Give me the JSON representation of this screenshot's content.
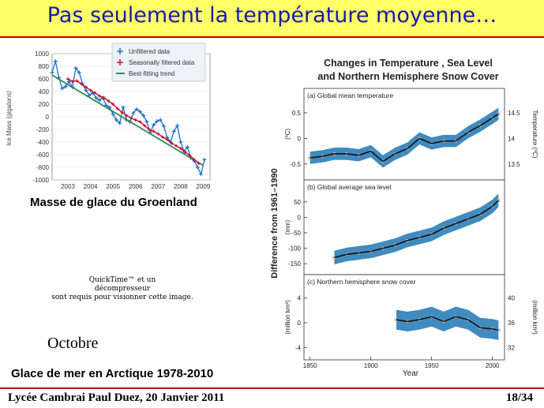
{
  "slide_title": "Pas seulement la température moyenne…",
  "footer": {
    "left": "Lycée Cambrai Paul Duez, 20 Janvier 2011",
    "right": "18/34"
  },
  "greenland_caption": "Masse de glace du Groenland",
  "quicktime_text": [
    "QuickTime™ et un",
    "décompresseur",
    "sont requis pour visionner cette image."
  ],
  "october_label": "Octobre",
  "arctic_caption": "Glace de mer en Arctique 1978-2010",
  "colors": {
    "title_bg": "#ffff66",
    "title_text": "#1a1aa6",
    "rule": "#c00000",
    "unfiltered": "#1f6fc5",
    "filtered": "#c8102e",
    "trend": "#2e8b57",
    "band": "#1f77b4"
  },
  "chart_data": [
    {
      "type": "line",
      "title": "",
      "xlabel": "",
      "ylabel": "Ice Mass (gigatons)",
      "xlim": [
        2002.3,
        2009.3
      ],
      "ylim": [
        -1000,
        1000
      ],
      "x_ticks": [
        2003,
        2004,
        2005,
        2006,
        2007,
        2008,
        2009
      ],
      "y_ticks": [
        1000,
        800,
        600,
        400,
        200,
        0,
        -200,
        -400,
        -600,
        -800,
        -1000
      ],
      "legend_position": "top-right",
      "series": [
        {
          "name": "Unfiltered data",
          "x": [
            2002.3,
            2002.45,
            2002.6,
            2002.75,
            2002.9,
            2003.05,
            2003.2,
            2003.35,
            2003.5,
            2003.65,
            2003.8,
            2003.95,
            2004.1,
            2004.25,
            2004.4,
            2004.55,
            2004.7,
            2004.85,
            2005.0,
            2005.15,
            2005.3,
            2005.45,
            2005.6,
            2005.75,
            2005.9,
            2006.05,
            2006.2,
            2006.35,
            2006.5,
            2006.65,
            2006.8,
            2006.95,
            2007.1,
            2007.25,
            2007.4,
            2007.55,
            2007.7,
            2007.85,
            2008.0,
            2008.15,
            2008.3,
            2008.45,
            2008.6,
            2008.75,
            2008.9,
            2009.05
          ],
          "y": [
            700,
            880,
            620,
            450,
            480,
            560,
            470,
            770,
            700,
            520,
            420,
            340,
            380,
            300,
            260,
            300,
            180,
            150,
            40,
            -50,
            -100,
            150,
            -50,
            -80,
            60,
            120,
            80,
            20,
            -80,
            -250,
            -130,
            -70,
            -50,
            -150,
            -330,
            -400,
            -230,
            -140,
            -400,
            -550,
            -480,
            -650,
            -700,
            -800,
            -910,
            -680
          ]
        },
        {
          "name": "Seasonally filtered data",
          "x": [
            2003.0,
            2003.2,
            2003.4,
            2003.6,
            2003.8,
            2004.0,
            2004.2,
            2004.4,
            2004.6,
            2004.8,
            2005.0,
            2005.2,
            2005.4,
            2005.6,
            2005.8,
            2006.0,
            2006.2,
            2006.4,
            2006.6,
            2006.8,
            2007.0,
            2007.2,
            2007.4,
            2007.6,
            2007.8,
            2008.0,
            2008.2,
            2008.4,
            2008.6,
            2008.8
          ],
          "y": [
            600,
            560,
            570,
            520,
            470,
            420,
            380,
            330,
            300,
            250,
            200,
            130,
            70,
            20,
            -20,
            -50,
            -80,
            -140,
            -200,
            -230,
            -270,
            -320,
            -360,
            -420,
            -460,
            -500,
            -560,
            -610,
            -680,
            -740
          ]
        },
        {
          "name": "Best-fitting trend",
          "x": [
            2002.3,
            2009.0
          ],
          "y": [
            660,
            -770
          ]
        }
      ]
    },
    {
      "type": "line",
      "title": "Changes in Temperature , Sea Level\nand Northern Hemisphere Snow Cover",
      "xlabel": "Year",
      "ylabel": "Difference from 1961–1990",
      "xlim": [
        1845,
        2010
      ],
      "x_ticks": [
        1850,
        1900,
        1950,
        2000
      ],
      "panels": [
        {
          "label": "(a) Global mean temperature",
          "left_unit": "(ºC)",
          "right_unit": "Temperature (ºC)",
          "left_ticks": [
            0.5,
            0.0,
            -0.5
          ],
          "right_ticks": [
            14.5,
            14.0,
            13.5
          ],
          "ylim": [
            -0.75,
            0.7
          ],
          "x": [
            1850,
            1860,
            1870,
            1880,
            1890,
            1900,
            1910,
            1920,
            1930,
            1940,
            1950,
            1960,
            1970,
            1980,
            1990,
            2000,
            2005
          ],
          "y": [
            -0.38,
            -0.35,
            -0.3,
            -0.3,
            -0.33,
            -0.25,
            -0.45,
            -0.3,
            -0.2,
            0.0,
            -0.1,
            -0.05,
            -0.05,
            0.12,
            0.25,
            0.4,
            0.48
          ]
        },
        {
          "label": "(b) Global average sea level",
          "left_unit": "(mm)",
          "left_ticks": [
            50,
            0,
            -50,
            -100,
            -150
          ],
          "ylim": [
            -175,
            75
          ],
          "x": [
            1870,
            1880,
            1890,
            1900,
            1910,
            1920,
            1930,
            1940,
            1950,
            1960,
            1970,
            1980,
            1990,
            2000,
            2005
          ],
          "y": [
            -130,
            -120,
            -115,
            -110,
            -100,
            -90,
            -75,
            -65,
            -55,
            -35,
            -20,
            -5,
            10,
            35,
            55
          ]
        },
        {
          "label": "(c) Northern hemisphere snow cover",
          "left_unit": "(million km²)",
          "right_unit": "(million km²)",
          "left_ticks": [
            4,
            0,
            -4
          ],
          "right_ticks": [
            40,
            36,
            32
          ],
          "ylim": [
            -5.5,
            5.5
          ],
          "x": [
            1921,
            1930,
            1940,
            1950,
            1960,
            1970,
            1980,
            1990,
            2000,
            2005
          ],
          "y": [
            0.5,
            0.2,
            0.5,
            1.0,
            0.2,
            1.0,
            0.5,
            -0.8,
            -1.0,
            -1.2
          ]
        }
      ]
    }
  ]
}
